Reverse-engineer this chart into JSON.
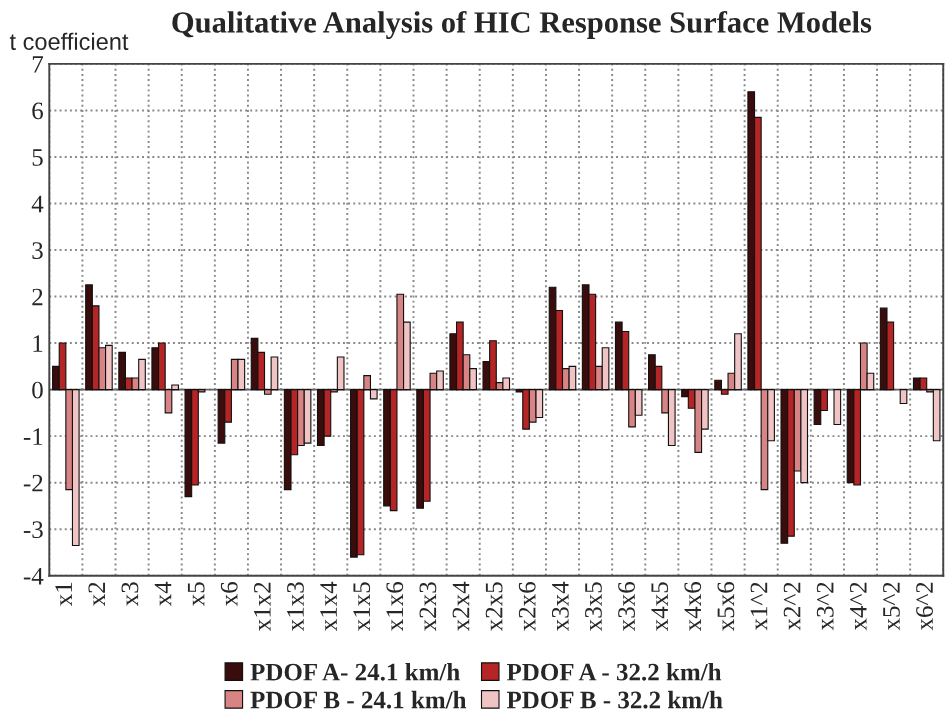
{
  "chart_data": {
    "type": "bar",
    "title": "Qualitative Analysis of HIC Response Surface Models",
    "ylabel": "t coefficient",
    "categories": [
      "x1",
      "x2",
      "x3",
      "x4",
      "x5",
      "x6",
      "x1x2",
      "x1x3",
      "x1x4",
      "x1x5",
      "x1x6",
      "x2x3",
      "x2x4",
      "x2x5",
      "x2x6",
      "x3x4",
      "x3x5",
      "x3x6",
      "x4x5",
      "x4x6",
      "x5x6",
      "x1^2",
      "x2^2",
      "x3^2",
      "x4^2",
      "x5^2",
      "x6^2"
    ],
    "series": [
      {
        "name": "PDOF A- 24.1 km/h",
        "color": "#3a0c0c",
        "values": [
          0.5,
          2.25,
          0.8,
          0.9,
          -2.3,
          -1.15,
          1.1,
          -2.15,
          -1.2,
          -3.6,
          -2.5,
          -2.55,
          1.2,
          0.6,
          -0.05,
          2.2,
          2.25,
          1.45,
          0.75,
          -0.15,
          0.2,
          6.4,
          -3.3,
          -0.75,
          -2.0,
          1.75,
          0.25
        ]
      },
      {
        "name": "PDOF A - 32.2 km/h",
        "color": "#b52525",
        "values": [
          1.0,
          1.8,
          0.25,
          1.0,
          -2.05,
          -0.7,
          0.8,
          -1.4,
          -1.0,
          -3.55,
          -2.6,
          -2.4,
          1.45,
          1.05,
          -0.85,
          1.7,
          2.05,
          1.25,
          0.5,
          -0.4,
          -0.1,
          5.85,
          -3.15,
          -0.45,
          -2.05,
          1.45,
          0.25
        ]
      },
      {
        "name": "PDOF B - 24.1 km/h",
        "color": "#d98484",
        "values": [
          -2.15,
          0.9,
          0.25,
          -0.5,
          -0.05,
          0.65,
          -0.1,
          -1.2,
          -0.05,
          0.3,
          2.05,
          0.35,
          0.75,
          0.15,
          -0.7,
          0.45,
          0.5,
          -0.8,
          -0.5,
          -1.35,
          0.35,
          -2.15,
          -1.75,
          null,
          1.0,
          null,
          -0.05
        ]
      },
      {
        "name": "PDOF B - 32.2 km/h",
        "color": "#f0c4c4",
        "values": [
          -3.35,
          0.95,
          0.65,
          0.1,
          null,
          0.65,
          0.7,
          -1.15,
          0.7,
          -0.2,
          1.45,
          0.4,
          0.45,
          0.25,
          -0.6,
          0.5,
          0.9,
          -0.55,
          -1.2,
          -0.85,
          1.2,
          -1.1,
          -2.0,
          -0.75,
          0.35,
          -0.3,
          -1.1
        ]
      }
    ],
    "ylim": [
      -4,
      7
    ],
    "yticks": [
      -4,
      -3,
      -2,
      -1,
      0,
      1,
      2,
      3,
      4,
      5,
      6,
      7
    ],
    "grid": true,
    "legend": "bottom"
  }
}
